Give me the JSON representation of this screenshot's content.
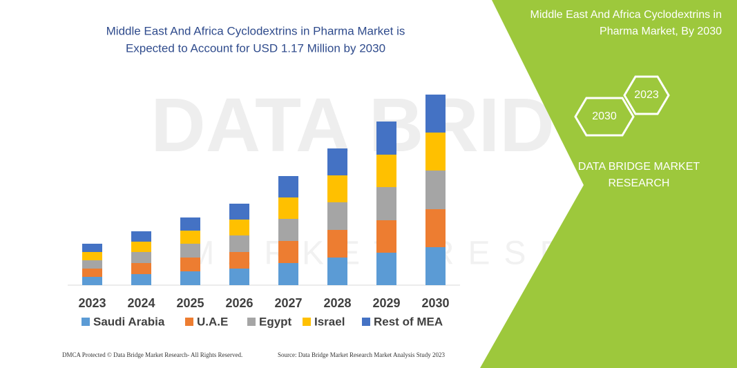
{
  "chart_data": {
    "type": "stacked_bar",
    "title": [
      "Middle East And Africa Cyclodextrins in Pharma Market is",
      "Expected to Account for USD 1.17 Million by 2030"
    ],
    "categories": [
      "2023",
      "2024",
      "2025",
      "2026",
      "2027",
      "2028",
      "2029",
      "2030"
    ],
    "series": [
      {
        "name": "Saudi Arabia",
        "color": "#5b9bd5",
        "values": [
          12,
          16,
          20,
          24,
          32,
          40,
          47,
          55
        ]
      },
      {
        "name": "U.A.E",
        "color": "#ed7d31",
        "values": [
          12,
          16,
          20,
          24,
          32,
          40,
          47,
          55
        ]
      },
      {
        "name": "Egypt",
        "color": "#a5a5a5",
        "values": [
          12,
          16,
          20,
          24,
          32,
          40,
          48,
          56
        ]
      },
      {
        "name": "Israel",
        "color": "#ffc000",
        "values": [
          12,
          15,
          19,
          23,
          31,
          39,
          47,
          55
        ]
      },
      {
        "name": "Rest of MEA",
        "color": "#4472c4",
        "values": [
          12,
          15,
          19,
          23,
          31,
          39,
          48,
          55
        ]
      }
    ],
    "ylim": [
      0,
      300
    ],
    "grid": false,
    "legend": "bottom"
  },
  "watermark": [
    "DATA BRIDGE",
    "MARKET RESEARCH"
  ],
  "side_panel": {
    "title": [
      "Middle East And Africa Cyclodextrins in",
      "Pharma Market, By 2030"
    ],
    "hexagons": [
      "2023",
      "2030"
    ],
    "brand": [
      "DATA BRIDGE MARKET",
      "RESEARCH"
    ]
  },
  "footer": {
    "left": "DMCA Protected © Data Bridge Market Research- All Rights Reserved.",
    "right": "Source: Data Bridge Market Research Market Analysis Study 2023"
  }
}
